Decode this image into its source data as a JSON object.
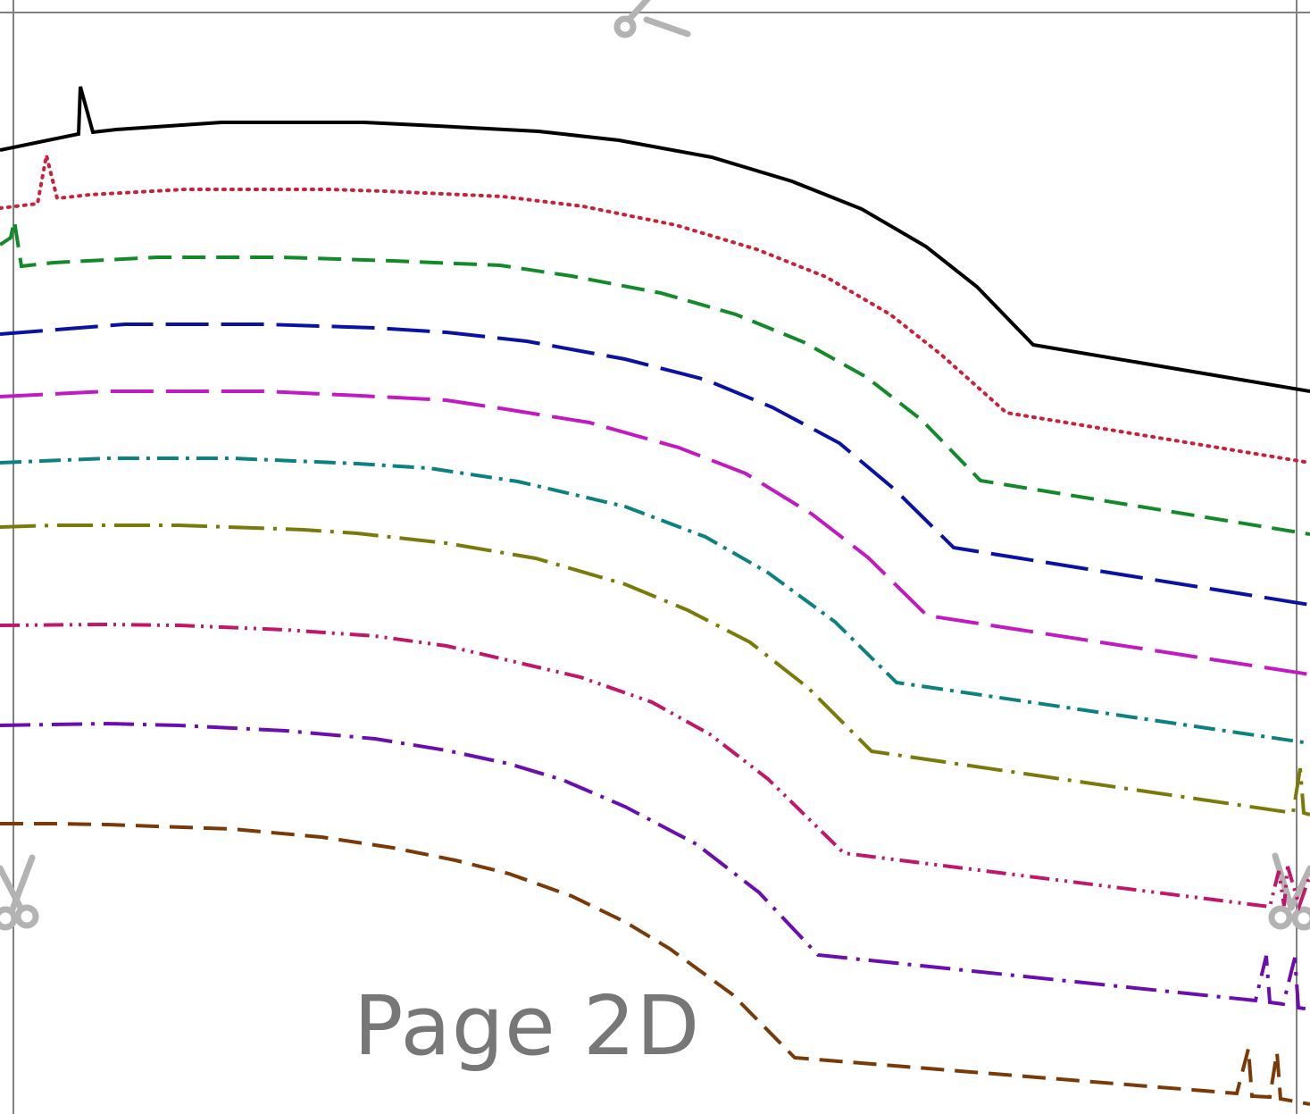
{
  "page": {
    "label": "Page 2D",
    "border_color": "#808080",
    "label_color": "#777777",
    "scissors_color": "#b3b3b3"
  },
  "icons": [
    "scissors-icon-top",
    "scissors-icon-left",
    "scissors-icon-right"
  ],
  "curves": [
    {
      "color": "#000000",
      "style": "solid"
    },
    {
      "color": "#cc1f3a",
      "style": "dotted"
    },
    {
      "color": "#128a2a",
      "style": "dashed"
    },
    {
      "color": "#0a12a3",
      "style": "long-dash"
    },
    {
      "color": "#c21ac2",
      "style": "long-dash"
    },
    {
      "color": "#0d8080",
      "style": "dash-dot"
    },
    {
      "color": "#7a7a0a",
      "style": "long-dash-dot"
    },
    {
      "color": "#c0176b",
      "style": "dash-dot-dot"
    },
    {
      "color": "#6a0eb0",
      "style": "dash-dot-long"
    },
    {
      "color": "#7a3a08",
      "style": "dashed"
    }
  ]
}
